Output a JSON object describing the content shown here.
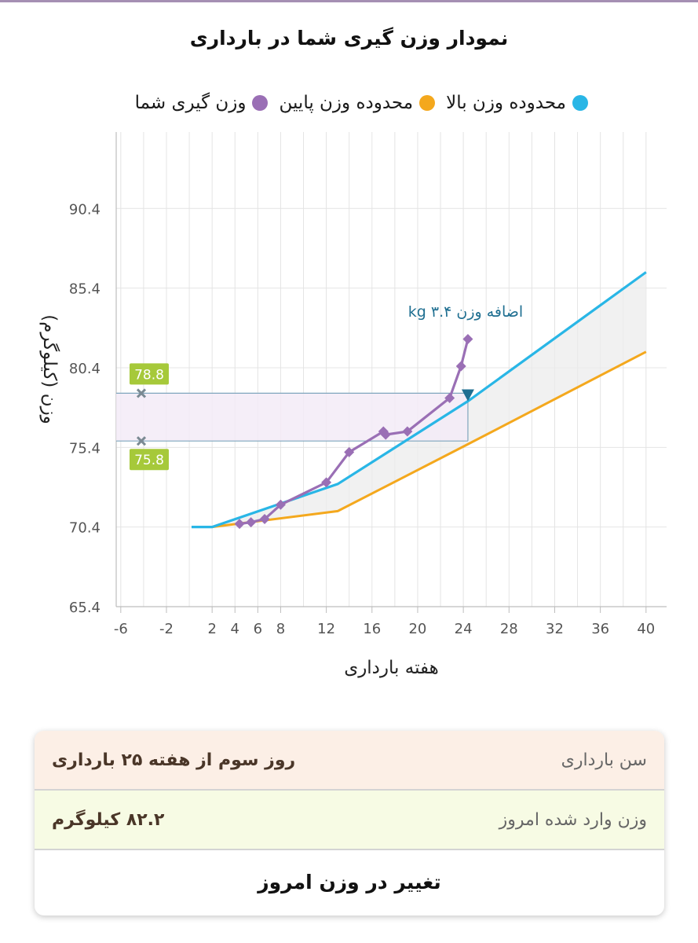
{
  "title": "نمودار وزن گیری شما در بارداری",
  "legend": [
    {
      "label": "محدوده وزن بالا",
      "color": "#29b6e6"
    },
    {
      "label": "محدوده وزن پایین",
      "color": "#f4a81d"
    },
    {
      "label": "وزن گیری شما",
      "color": "#9a6fb5"
    }
  ],
  "chart_data": {
    "type": "line",
    "xlabel": "هفته بارداری",
    "ylabel": "وزن (کیلوگرم)",
    "xlim": [
      -6.4,
      41.8
    ],
    "ylim": [
      65.4,
      95.2
    ],
    "x_ticks": [
      -6,
      -2,
      2,
      4,
      6,
      8,
      12,
      16,
      20,
      24,
      28,
      32,
      36,
      40
    ],
    "y_ticks": [
      65.4,
      70.4,
      75.4,
      80.4,
      85.4,
      90.4
    ],
    "grid": true,
    "legend_position": "top",
    "series": [
      {
        "name": "محدوده وزن بالا",
        "color": "#29b6e6",
        "x": [
          0.2,
          2,
          13,
          24.4,
          40
        ],
        "y": [
          70.4,
          70.4,
          73.1,
          78.3,
          86.4
        ]
      },
      {
        "name": "محدوده وزن پایین",
        "color": "#f4a81d",
        "x": [
          2,
          13,
          24.4,
          40
        ],
        "y": [
          70.4,
          71.4,
          75.6,
          81.4
        ]
      },
      {
        "name": "وزن گیری شما",
        "color": "#9a6fb5",
        "x": [
          4.4,
          5.4,
          6.6,
          8.0,
          12.0,
          14.0,
          17.0,
          17.2,
          19.1,
          22.8,
          23.8,
          24.4
        ],
        "y": [
          70.6,
          70.7,
          70.9,
          71.8,
          73.2,
          75.1,
          76.4,
          76.2,
          76.4,
          78.5,
          80.5,
          82.2
        ]
      }
    ],
    "band": {
      "upper": 78.8,
      "lower": 75.8,
      "upper_label": "78.8",
      "lower_label": "75.8",
      "marker_x": -4.2
    },
    "annotation": {
      "text": "اضافه وزن ۳.۴ kg",
      "x": 24.4,
      "y": 78.3
    }
  },
  "info": {
    "age_label": "سن بارداری",
    "age_value": "روز سوم از هفته ۲۵ بارداری",
    "weight_label": "وزن وارد شده امروز",
    "weight_value": "۸۲.۲ کیلوگرم",
    "button": "تغییر در وزن امروز"
  }
}
